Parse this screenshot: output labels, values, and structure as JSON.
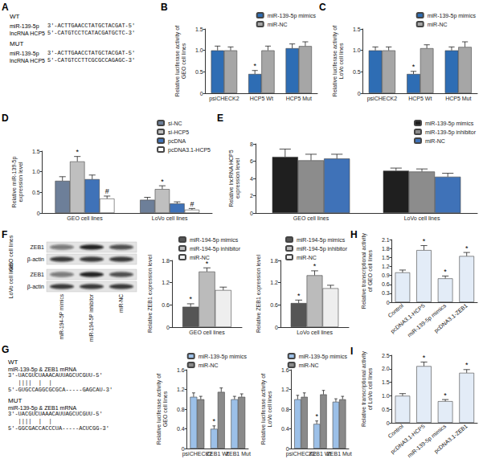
{
  "chart_data": [
    {
      "type": "bar",
      "ylabel": "Relative luciferase activity of\nGEO cell lines",
      "categories": [
        "psiCHECK2",
        "HCP5 Wt",
        "HCP5 Mut"
      ],
      "series": [
        {
          "name": "miR-139-5p mimics",
          "color": "#2e6db4",
          "values": [
            1.0,
            0.45,
            1.05
          ],
          "errors": [
            0.1,
            0.08,
            0.1
          ],
          "marks": [
            null,
            "*",
            null
          ]
        },
        {
          "name": "miR-NC",
          "color": "#a6a6a6",
          "values": [
            1.0,
            1.0,
            1.1
          ],
          "errors": [
            0.08,
            0.1,
            0.1
          ]
        }
      ],
      "ylim": [
        0,
        1.5
      ],
      "yticks": [
        0,
        0.5,
        {
          "value": 1,
          "label": "1.0"
        },
        1.5
      ],
      "grid": false,
      "legend": "upper right"
    },
    {
      "type": "bar",
      "ylabel": "Relative luciferase activity of\nLoVo cell lines",
      "categories": [
        "psiCHECK2",
        "HCP5 Wt",
        "HCP5 Mut"
      ],
      "series": [
        {
          "name": "miR-139-5p mimics",
          "color": "#2e6db4",
          "values": [
            1.0,
            0.45,
            1.0
          ],
          "errors": [
            0.08,
            0.06,
            0.08
          ],
          "marks": [
            null,
            "*",
            null
          ]
        },
        {
          "name": "miR-NC",
          "color": "#a6a6a6",
          "values": [
            1.0,
            1.05,
            1.08
          ],
          "errors": [
            0.08,
            0.08,
            0.12
          ]
        }
      ],
      "ylim": [
        0,
        1.5
      ],
      "yticks": [
        0,
        0.5,
        {
          "value": 1,
          "label": "1.0"
        },
        1.5
      ],
      "grid": false,
      "legend": "upper right"
    },
    {
      "type": "bar",
      "ylabel": "Relative miR-139-5p\nexpression level",
      "categories": [
        "GEO cell lines",
        "LoVo cell lines"
      ],
      "series": [
        {
          "name": "si-NC",
          "color": "#6d7f99",
          "values": [
            0.78,
            0.32
          ],
          "errors": [
            0.1,
            0.06
          ]
        },
        {
          "name": "si-HCP5",
          "color": "#bfbfbf",
          "values": [
            1.25,
            0.58
          ],
          "errors": [
            0.12,
            0.08
          ],
          "marks": [
            "*",
            "*"
          ]
        },
        {
          "name": "pcDNA",
          "color": "#3f72b8",
          "values": [
            0.82,
            0.23
          ],
          "errors": [
            0.1,
            0.04
          ]
        },
        {
          "name": "pcDNA3.1-HCP5",
          "color": "#ffffff",
          "values": [
            0.35,
            0.08
          ],
          "errors": [
            0.06,
            0.03
          ],
          "marks": [
            "#",
            "#"
          ]
        }
      ],
      "ylim": [
        0,
        1.5
      ],
      "yticks": [
        0,
        0.5,
        {
          "value": 1,
          "label": "1.0"
        },
        1.5
      ],
      "grid": false,
      "legend": "upper right"
    },
    {
      "type": "bar",
      "ylabel": "Relative lncRNA HCP5\nexpression level",
      "categories": [
        "GEO cell lines",
        "LoVo cell lines"
      ],
      "series": [
        {
          "name": "miR-139-5p mimics",
          "color": "#1f1f1f",
          "values": [
            6.5,
            4.9
          ],
          "errors": [
            0.9,
            0.3
          ]
        },
        {
          "name": "miR-139-5p inhibitor",
          "color": "#8c8c8c",
          "values": [
            6.1,
            4.8
          ],
          "errors": [
            0.7,
            0.3
          ]
        },
        {
          "name": "miR-NC",
          "color": "#3f72b8",
          "values": [
            6.3,
            4.2
          ],
          "errors": [
            0.5,
            0.4
          ]
        }
      ],
      "ylim": [
        0,
        8
      ],
      "yticks": [
        0,
        2,
        4,
        6,
        8
      ],
      "grid": false,
      "legend": "upper right"
    },
    {
      "type": "bar",
      "ylabel": "Relative ZEB1 expression level",
      "categories": [
        "GEO cell lines"
      ],
      "series": [
        {
          "name": "miR-194-5p mimics",
          "color": "#555555",
          "values": [
            0.55
          ],
          "errors": [
            0.08
          ],
          "marks": [
            "*"
          ]
        },
        {
          "name": "miR-194-5p inhibitor",
          "color": "#bbbbbb",
          "values": [
            1.5
          ],
          "errors": [
            0.1
          ],
          "marks": [
            "*"
          ]
        },
        {
          "name": "miR-NC",
          "color": "#eeeeee",
          "values": [
            1.0
          ],
          "errors": [
            0.08
          ]
        }
      ],
      "ylim": [
        0,
        1.8
      ],
      "yticks": [
        0,
        0.6,
        1.2,
        1.8
      ],
      "grid": false,
      "legend": "upper right"
    },
    {
      "type": "bar",
      "ylabel": "Relative ZEB1 expression level",
      "categories": [
        "LoVo cell lines"
      ],
      "series": [
        {
          "name": "miR-194-5p mimics",
          "color": "#555555",
          "values": [
            0.65
          ],
          "errors": [
            0.08
          ],
          "marks": [
            "*"
          ]
        },
        {
          "name": "miR-194-5p inhibitor",
          "color": "#bbbbbb",
          "values": [
            1.4
          ],
          "errors": [
            0.12
          ],
          "marks": [
            "*"
          ]
        },
        {
          "name": "miR-NC",
          "color": "#eeeeee",
          "values": [
            1.05
          ],
          "errors": [
            0.08
          ]
        }
      ],
      "ylim": [
        0,
        1.8
      ],
      "yticks": [
        0,
        0.6,
        1.2,
        1.8
      ],
      "grid": false,
      "legend": "upper right"
    },
    {
      "type": "bar",
      "ylabel": "Relative luciferase activity of\nGEO cell lines",
      "categories": [
        "psiCHECK2",
        "ZEB1 Wt",
        "ZEB1 Mut"
      ],
      "series": [
        {
          "name": "miR-139-5p mimics",
          "color": "#9cc0e8",
          "values": [
            1.05,
            0.4,
            1.0
          ],
          "errors": [
            0.08,
            0.06,
            0.06
          ],
          "marks": [
            null,
            "*",
            null
          ]
        },
        {
          "name": "miR-NC",
          "color": "#8a8a8a",
          "values": [
            1.0,
            1.15,
            1.05
          ],
          "errors": [
            0.06,
            0.08,
            0.06
          ]
        }
      ],
      "ylim": [
        0,
        1.6
      ],
      "yticks": [
        0,
        0.4,
        0.8,
        1.2,
        1.6
      ],
      "grid": false,
      "legend": "upper right"
    },
    {
      "type": "bar",
      "ylabel": "Relative luciferase activity of\nLoVo cell lines",
      "categories": [
        "psiCHECK2",
        "ZEB1 Wt",
        "ZEB1 Mut"
      ],
      "series": [
        {
          "name": "miR-139-5p mimics",
          "color": "#9cc0e8",
          "values": [
            1.0,
            0.5,
            0.95
          ],
          "errors": [
            0.08,
            0.06,
            0.06
          ],
          "marks": [
            null,
            "*",
            null
          ]
        },
        {
          "name": "miR-NC",
          "color": "#8a8a8a",
          "values": [
            1.05,
            1.1,
            1.0
          ],
          "errors": [
            0.08,
            0.08,
            0.06
          ]
        }
      ],
      "ylim": [
        0,
        1.6
      ],
      "yticks": [
        0,
        0.4,
        0.8,
        1.2,
        1.6
      ],
      "grid": false,
      "legend": "upper right"
    },
    {
      "type": "bar",
      "ylabel": "Relative transcriptional activity\nof GEO cell lines",
      "categories": [
        "Control",
        "pcDNA3.1-HCP5",
        "miR-139-5p mimics",
        "pcDNA3.1-ZEB1"
      ],
      "series": [
        {
          "name": "GEO",
          "color": "#e3ecf7",
          "values": [
            1.0,
            1.75,
            0.8,
            1.55
          ],
          "errors": [
            0.08,
            0.15,
            0.08,
            0.12
          ],
          "marks": [
            null,
            "*",
            "*",
            "*"
          ]
        }
      ],
      "ylim": [
        0,
        2.1
      ],
      "yticks": [
        0,
        0.3,
        0.6,
        0.9,
        1.2,
        1.5,
        1.8,
        2.1
      ],
      "grid": false
    },
    {
      "type": "bar",
      "ylabel": "Relative transcriptional activity\nof LoVo cell lines",
      "categories": [
        "Control",
        "pcDNA3.1-HCP5",
        "miR-139-5p mimics",
        "pcDNA3.1-ZEB1"
      ],
      "series": [
        {
          "name": "LoVo",
          "color": "#e3ecf7",
          "values": [
            1.0,
            2.1,
            0.8,
            1.85
          ],
          "errors": [
            0.08,
            0.15,
            0.06,
            0.12
          ],
          "marks": [
            null,
            "*",
            "*",
            "*"
          ]
        }
      ],
      "ylim": [
        0,
        2.5
      ],
      "yticks": [
        0,
        0.5,
        {
          "value": 1,
          "label": "1.0"
        },
        1.5,
        {
          "value": 2,
          "label": "2.0"
        },
        2.5
      ],
      "grid": false
    }
  ],
  "figure": {
    "panel_labels": [
      "A",
      "B",
      "C",
      "D",
      "E",
      "F",
      "G",
      "H",
      "I"
    ],
    "A": [
      {
        "label": "WT",
        "rows": [
          {
            "name": "miR-139-5p",
            "seq": "3'-ACTTGAACCTATGCTACGAT-5'"
          },
          {
            "name": "lncRNA HCP5",
            "seq": "5'-CATGTCCTCATACGATGCTC-3'"
          }
        ]
      },
      {
        "label": "MUT",
        "rows": [
          {
            "name": "miR-139-5p",
            "seq": "3'-ACTTGAACCTATGCTACGAT-5'"
          },
          {
            "name": "lncRNA HCP5",
            "seq": "5'-CATGTCCTTCGCGCCAGAGC-3'"
          }
        ]
      }
    ],
    "F_blot": {
      "cell_lines": [
        "GEO cell lines",
        "LoVo cell lines"
      ],
      "rows": [
        "ZEB1",
        "β-actin"
      ],
      "lanes": [
        "miR-194-5P mimics",
        "miR-194-5P inhibitor",
        "miR-NC"
      ]
    },
    "G": [
      {
        "label": "WT",
        "title": "miR-139-5p & ZEB1 mRNA",
        "lines": [
          "3'-UACGUCUAAACAUUAGCUCGUU-5'",
          "   ||||  |  |",
          "5'-GUGCCAGGCGCGCA-----GAGCAU-3'"
        ]
      },
      {
        "label": "MUT",
        "title": "miR-139-5p & ZEB1 mRNA",
        "lines": [
          "3'-UACGUCUAAACAUUAGCUCGUU-5'",
          "   ||||  |  |",
          "5'-GGCGACCACCCUA-----ACUCGG-3'"
        ]
      }
    ]
  }
}
